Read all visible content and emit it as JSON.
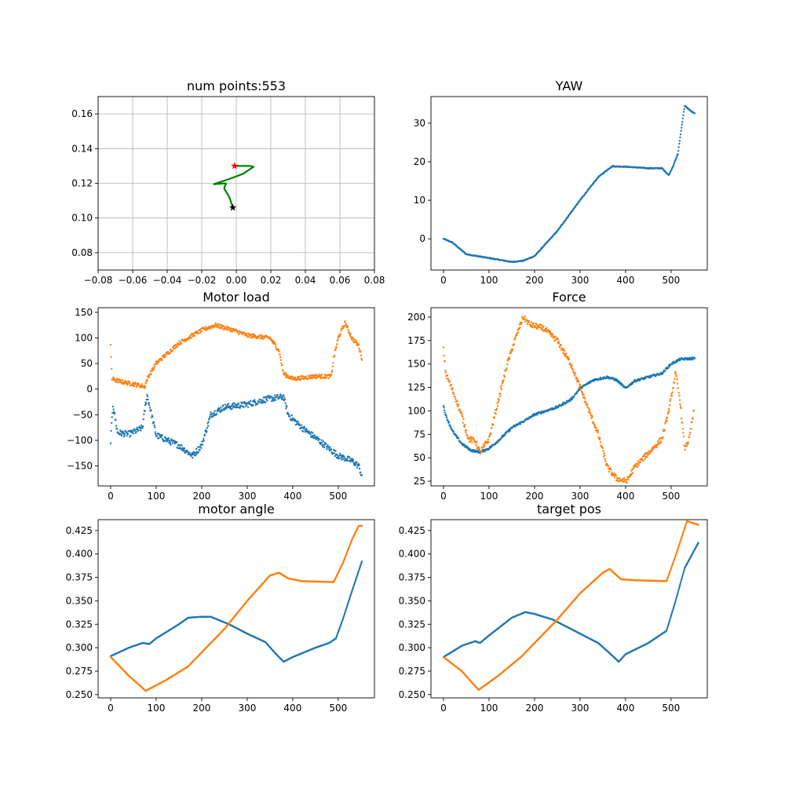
{
  "chart_data": [
    {
      "id": "traj",
      "type": "line",
      "title": "num points:553",
      "xlim": [
        -0.08,
        0.08
      ],
      "ylim": [
        0.07,
        0.17
      ],
      "grid": true,
      "xticks": [
        -0.08,
        -0.06,
        -0.04,
        -0.02,
        0.0,
        0.02,
        0.04,
        0.06,
        0.08
      ],
      "xtick_labels": [
        "−0.08",
        "−0.06",
        "−0.04",
        "−0.02",
        "0.00",
        "0.02",
        "0.04",
        "0.06",
        "0.08"
      ],
      "yticks": [
        0.08,
        0.1,
        0.12,
        0.14,
        0.16
      ],
      "ytick_labels": [
        "0.08",
        "0.10",
        "0.12",
        "0.14",
        "0.16"
      ],
      "path": {
        "color": "#008000",
        "x": [
          -0.002,
          -0.004,
          -0.007,
          -0.006,
          -0.013,
          -0.004,
          0.004,
          0.01,
          0.008,
          -0.001
        ],
        "y": [
          0.106,
          0.112,
          0.117,
          0.12,
          0.1195,
          0.1225,
          0.1255,
          0.1295,
          0.13,
          0.13
        ]
      },
      "markers": [
        {
          "name": "start",
          "x": -0.002,
          "y": 0.106,
          "color": "#000000",
          "shape": "star"
        },
        {
          "name": "end",
          "x": -0.001,
          "y": 0.13,
          "color": "#ff0000",
          "shape": "star"
        }
      ]
    },
    {
      "id": "yaw",
      "type": "scatter",
      "title": "YAW",
      "xlim": [
        -27.6,
        579.6
      ],
      "ylim": [
        -8.1,
        36.9
      ],
      "xticks": [
        0,
        100,
        200,
        300,
        400,
        500
      ],
      "xtick_labels": [
        "0",
        "100",
        "200",
        "300",
        "400",
        "500"
      ],
      "yticks": [
        0,
        10,
        20,
        30
      ],
      "ytick_labels": [
        "0",
        "10",
        "20",
        "30"
      ],
      "series": [
        {
          "color": "#1f77b4",
          "noise": 0.1,
          "points": [
            [
              0,
              0
            ],
            [
              20,
              -1
            ],
            [
              50,
              -4
            ],
            [
              100,
              -5
            ],
            [
              150,
              -6
            ],
            [
              175,
              -5.7
            ],
            [
              200,
              -4.5
            ],
            [
              250,
              2
            ],
            [
              300,
              10
            ],
            [
              340,
              16
            ],
            [
              370,
              18.8
            ],
            [
              400,
              18.7
            ],
            [
              450,
              18.3
            ],
            [
              480,
              18.3
            ],
            [
              495,
              16.5
            ],
            [
              505,
              19
            ],
            [
              515,
              22
            ],
            [
              522,
              28
            ],
            [
              530,
              34.5
            ],
            [
              545,
              33
            ],
            [
              552,
              32.5
            ]
          ]
        }
      ]
    },
    {
      "id": "load",
      "type": "scatter",
      "title": "Motor load",
      "xlim": [
        -27.6,
        579.6
      ],
      "ylim": [
        -189,
        159
      ],
      "xticks": [
        0,
        100,
        200,
        300,
        400,
        500
      ],
      "xtick_labels": [
        "0",
        "100",
        "200",
        "300",
        "400",
        "500"
      ],
      "yticks": [
        -150,
        -100,
        -50,
        0,
        50,
        100,
        150
      ],
      "ytick_labels": [
        "−150",
        "−100",
        "−50",
        "0",
        "50",
        "100",
        "150"
      ],
      "series": [
        {
          "color": "#1f77b4",
          "noise": 6,
          "points": [
            [
              0,
              -100
            ],
            [
              5,
              -30
            ],
            [
              15,
              -85
            ],
            [
              40,
              -88
            ],
            [
              60,
              -80
            ],
            [
              70,
              -75
            ],
            [
              75,
              -40
            ],
            [
              80,
              -12
            ],
            [
              90,
              -50
            ],
            [
              100,
              -90
            ],
            [
              150,
              -110
            ],
            [
              180,
              -130
            ],
            [
              200,
              -110
            ],
            [
              220,
              -50
            ],
            [
              250,
              -35
            ],
            [
              300,
              -30
            ],
            [
              340,
              -20
            ],
            [
              380,
              -15
            ],
            [
              390,
              -50
            ],
            [
              420,
              -75
            ],
            [
              450,
              -95
            ],
            [
              500,
              -130
            ],
            [
              530,
              -140
            ],
            [
              545,
              -150
            ],
            [
              552,
              -170
            ]
          ]
        },
        {
          "color": "#ff7f0e",
          "noise": 4,
          "points": [
            [
              0,
              83
            ],
            [
              3,
              20
            ],
            [
              20,
              15
            ],
            [
              50,
              10
            ],
            [
              75,
              5
            ],
            [
              80,
              20
            ],
            [
              100,
              50
            ],
            [
              150,
              90
            ],
            [
              200,
              115
            ],
            [
              230,
              125
            ],
            [
              270,
              115
            ],
            [
              300,
              105
            ],
            [
              350,
              100
            ],
            [
              370,
              75
            ],
            [
              380,
              30
            ],
            [
              400,
              20
            ],
            [
              450,
              25
            ],
            [
              485,
              25
            ],
            [
              490,
              60
            ],
            [
              500,
              100
            ],
            [
              515,
              130
            ],
            [
              530,
              100
            ],
            [
              545,
              85
            ],
            [
              552,
              60
            ]
          ]
        }
      ]
    },
    {
      "id": "force",
      "type": "scatter",
      "title": "Force",
      "xlim": [
        -27.6,
        579.6
      ],
      "ylim": [
        20,
        210
      ],
      "xticks": [
        0,
        100,
        200,
        300,
        400,
        500
      ],
      "xtick_labels": [
        "0",
        "100",
        "200",
        "300",
        "400",
        "500"
      ],
      "yticks": [
        25,
        50,
        75,
        100,
        125,
        150,
        175,
        200
      ],
      "ytick_labels": [
        "25",
        "50",
        "75",
        "100",
        "125",
        "150",
        "175",
        "200"
      ],
      "series": [
        {
          "color": "#1f77b4",
          "noise": 1.2,
          "points": [
            [
              0,
              105
            ],
            [
              5,
              95
            ],
            [
              20,
              78
            ],
            [
              40,
              65
            ],
            [
              60,
              58
            ],
            [
              80,
              56
            ],
            [
              100,
              60
            ],
            [
              120,
              68
            ],
            [
              150,
              82
            ],
            [
              180,
              90
            ],
            [
              200,
              96
            ],
            [
              250,
              104
            ],
            [
              280,
              112
            ],
            [
              300,
              124
            ],
            [
              330,
              133
            ],
            [
              360,
              136
            ],
            [
              380,
              133
            ],
            [
              400,
              124
            ],
            [
              420,
              132
            ],
            [
              450,
              136
            ],
            [
              480,
              140
            ],
            [
              500,
              150
            ],
            [
              520,
              155
            ],
            [
              552,
              156
            ]
          ]
        },
        {
          "color": "#ff7f0e",
          "noise": 3,
          "points": [
            [
              0,
              165
            ],
            [
              5,
              140
            ],
            [
              20,
              122
            ],
            [
              40,
              95
            ],
            [
              55,
              70
            ],
            [
              70,
              68
            ],
            [
              80,
              56
            ],
            [
              100,
              70
            ],
            [
              120,
              110
            ],
            [
              140,
              150
            ],
            [
              160,
              180
            ],
            [
              175,
              200
            ],
            [
              190,
              192
            ],
            [
              220,
              188
            ],
            [
              250,
              175
            ],
            [
              280,
              150
            ],
            [
              300,
              125
            ],
            [
              320,
              100
            ],
            [
              340,
              75
            ],
            [
              360,
              40
            ],
            [
              380,
              28
            ],
            [
              400,
              25
            ],
            [
              405,
              27
            ],
            [
              420,
              40
            ],
            [
              450,
              55
            ],
            [
              480,
              70
            ],
            [
              495,
              100
            ],
            [
              510,
              140
            ],
            [
              520,
              110
            ],
            [
              530,
              60
            ],
            [
              540,
              70
            ],
            [
              550,
              100
            ]
          ]
        }
      ]
    },
    {
      "id": "angle",
      "type": "scatter",
      "title": "motor angle",
      "xlim": [
        -27.6,
        579.6
      ],
      "ylim": [
        0.2465,
        0.4366
      ],
      "xticks": [
        0,
        100,
        200,
        300,
        400,
        500
      ],
      "xtick_labels": [
        "0",
        "100",
        "200",
        "300",
        "400",
        "500"
      ],
      "yticks": [
        0.25,
        0.275,
        0.3,
        0.325,
        0.35,
        0.375,
        0.4,
        0.425
      ],
      "ytick_labels": [
        "0.250",
        "0.275",
        "0.300",
        "0.325",
        "0.350",
        "0.375",
        "0.400",
        "0.425"
      ],
      "series": [
        {
          "color": "#1f77b4",
          "noise": 0,
          "points": [
            [
              0,
              0.291
            ],
            [
              40,
              0.3
            ],
            [
              70,
              0.305
            ],
            [
              85,
              0.304
            ],
            [
              100,
              0.31
            ],
            [
              150,
              0.325
            ],
            [
              170,
              0.332
            ],
            [
              200,
              0.333
            ],
            [
              220,
              0.333
            ],
            [
              260,
              0.325
            ],
            [
              300,
              0.315
            ],
            [
              340,
              0.306
            ],
            [
              360,
              0.295
            ],
            [
              380,
              0.285
            ],
            [
              400,
              0.29
            ],
            [
              450,
              0.3
            ],
            [
              480,
              0.305
            ],
            [
              495,
              0.31
            ],
            [
              510,
              0.33
            ],
            [
              530,
              0.36
            ],
            [
              552,
              0.392
            ]
          ]
        },
        {
          "color": "#ff7f0e",
          "noise": 0,
          "points": [
            [
              0,
              0.29
            ],
            [
              40,
              0.27
            ],
            [
              77,
              0.254
            ],
            [
              120,
              0.265
            ],
            [
              170,
              0.28
            ],
            [
              250,
              0.32
            ],
            [
              300,
              0.35
            ],
            [
              350,
              0.377
            ],
            [
              370,
              0.38
            ],
            [
              390,
              0.374
            ],
            [
              420,
              0.371
            ],
            [
              490,
              0.37
            ],
            [
              510,
              0.39
            ],
            [
              530,
              0.415
            ],
            [
              545,
              0.43
            ],
            [
              552,
              0.43
            ]
          ]
        }
      ]
    },
    {
      "id": "target",
      "type": "scatter",
      "title": "target pos",
      "xlim": [
        -27.6,
        579.6
      ],
      "ylim": [
        0.2465,
        0.4366
      ],
      "xticks": [
        0,
        100,
        200,
        300,
        400,
        500
      ],
      "xtick_labels": [
        "0",
        "100",
        "200",
        "300",
        "400",
        "500"
      ],
      "yticks": [
        0.25,
        0.275,
        0.3,
        0.325,
        0.35,
        0.375,
        0.4,
        0.425
      ],
      "ytick_labels": [
        "0.250",
        "0.275",
        "0.300",
        "0.325",
        "0.350",
        "0.375",
        "0.400",
        "0.425"
      ],
      "series": [
        {
          "color": "#1f77b4",
          "noise": 0,
          "points": [
            [
              0,
              0.29
            ],
            [
              40,
              0.302
            ],
            [
              70,
              0.307
            ],
            [
              80,
              0.305
            ],
            [
              100,
              0.313
            ],
            [
              150,
              0.332
            ],
            [
              180,
              0.338
            ],
            [
              200,
              0.336
            ],
            [
              240,
              0.33
            ],
            [
              300,
              0.315
            ],
            [
              340,
              0.305
            ],
            [
              370,
              0.292
            ],
            [
              385,
              0.285
            ],
            [
              400,
              0.293
            ],
            [
              450,
              0.305
            ],
            [
              490,
              0.318
            ],
            [
              510,
              0.35
            ],
            [
              530,
              0.385
            ],
            [
              560,
              0.412
            ]
          ]
        },
        {
          "color": "#ff7f0e",
          "noise": 0,
          "points": [
            [
              0,
              0.29
            ],
            [
              40,
              0.275
            ],
            [
              77,
              0.255
            ],
            [
              120,
              0.27
            ],
            [
              170,
              0.29
            ],
            [
              250,
              0.33
            ],
            [
              300,
              0.358
            ],
            [
              350,
              0.38
            ],
            [
              365,
              0.384
            ],
            [
              390,
              0.373
            ],
            [
              420,
              0.372
            ],
            [
              490,
              0.371
            ],
            [
              510,
              0.398
            ],
            [
              535,
              0.435
            ],
            [
              560,
              0.431
            ]
          ]
        }
      ]
    }
  ]
}
